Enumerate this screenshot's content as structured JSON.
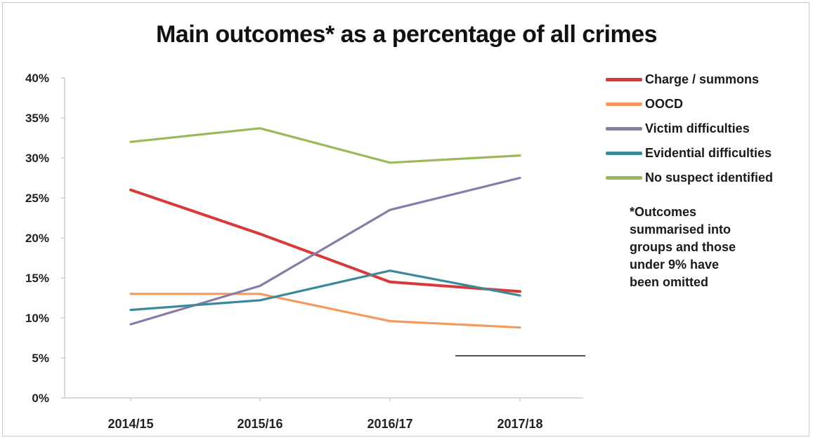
{
  "chart_data": {
    "type": "line",
    "title": "Main outcomes* as a percentage of all crimes",
    "categories": [
      "2014/15",
      "2015/16",
      "2016/17",
      "2017/18"
    ],
    "ylim": [
      0,
      40
    ],
    "yticks": [
      "0%",
      "5%",
      "10%",
      "15%",
      "20%",
      "25%",
      "30%",
      "35%",
      "40%"
    ],
    "grid": false,
    "legend_position": "right",
    "series": [
      {
        "name": "Charge / summons",
        "color": "#d83a3a",
        "values": [
          26.0,
          20.5,
          14.5,
          13.3
        ]
      },
      {
        "name": "OOCD",
        "color": "#f59a5c",
        "values": [
          13.0,
          13.0,
          9.6,
          8.8
        ]
      },
      {
        "name": "Victim difficulties",
        "color": "#8a7aa8",
        "values": [
          9.2,
          14.0,
          23.5,
          27.5
        ]
      },
      {
        "name": "Evidential difficulties",
        "color": "#3a8a9a",
        "values": [
          11.0,
          12.2,
          15.9,
          12.8
        ]
      },
      {
        "name": "No suspect identified",
        "color": "#9cb85a",
        "values": [
          32.0,
          33.7,
          29.4,
          30.3
        ]
      }
    ],
    "annotation": [
      "*Outcomes",
      "summarised into",
      "groups and those",
      "under 9% have",
      "been omitted"
    ]
  }
}
